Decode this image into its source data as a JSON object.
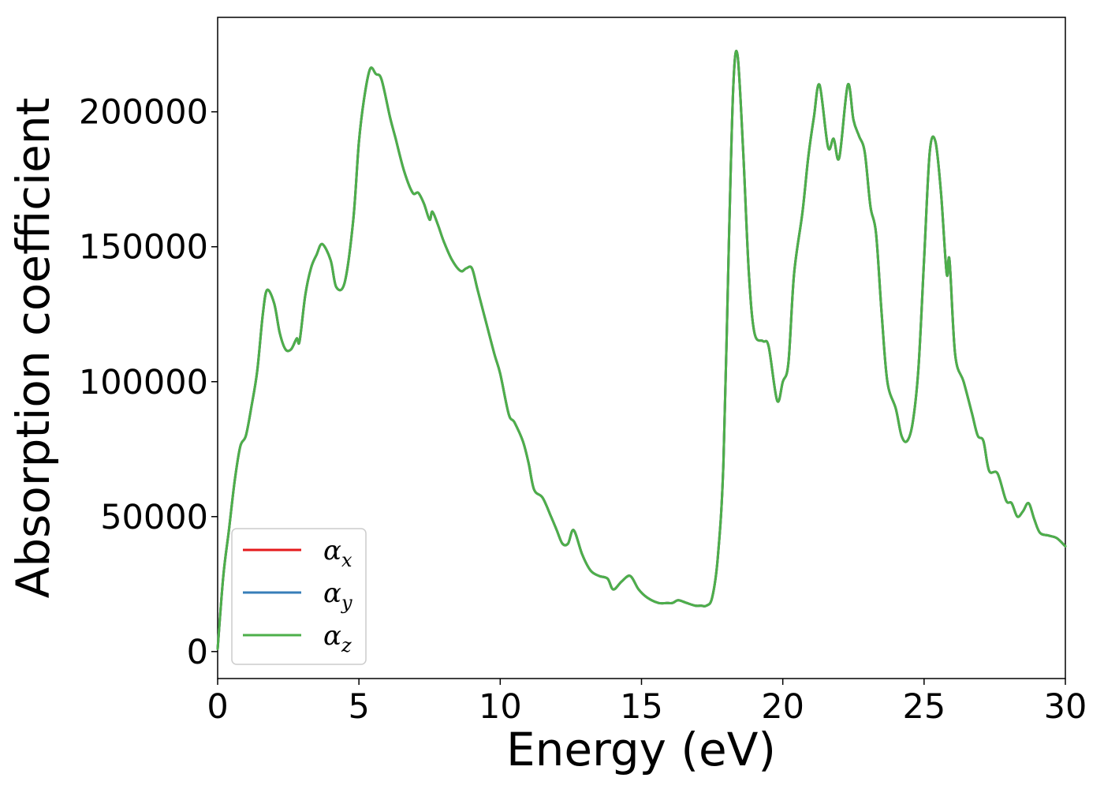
{
  "chart_data": {
    "type": "line",
    "xlabel": "Energy (eV)",
    "ylabel": "Absorption coefficient",
    "xlim": [
      0,
      30
    ],
    "ylim": [
      -10000,
      235000
    ],
    "xticks": [
      0,
      5,
      10,
      15,
      20,
      25,
      30
    ],
    "xtick_labels": [
      "0",
      "5",
      "10",
      "15",
      "20",
      "25",
      "30"
    ],
    "yticks": [
      0,
      50000,
      100000,
      150000,
      200000
    ],
    "ytick_labels": [
      "0",
      "50000",
      "100000",
      "150000",
      "200000"
    ],
    "grid": false,
    "legend_position": "bottom-left",
    "x": [
      0,
      0.2,
      0.4,
      0.6,
      0.8,
      1.0,
      1.2,
      1.4,
      1.6,
      1.75,
      2.0,
      2.2,
      2.4,
      2.6,
      2.8,
      2.9,
      3.1,
      3.3,
      3.5,
      3.7,
      4.0,
      4.2,
      4.5,
      4.8,
      5.0,
      5.2,
      5.4,
      5.6,
      5.8,
      6.1,
      6.3,
      6.6,
      6.9,
      7.1,
      7.3,
      7.5,
      7.6,
      7.8,
      8.0,
      8.3,
      8.6,
      8.8,
      9.0,
      9.2,
      9.5,
      9.8,
      10.0,
      10.3,
      10.5,
      10.8,
      11.0,
      11.2,
      11.5,
      11.8,
      12.0,
      12.2,
      12.4,
      12.6,
      12.9,
      13.2,
      13.5,
      13.8,
      14.0,
      14.3,
      14.6,
      14.9,
      15.2,
      15.6,
      15.9,
      16.1,
      16.3,
      16.6,
      16.9,
      17.1,
      17.3,
      17.5,
      17.7,
      17.9,
      18.1,
      18.25,
      18.4,
      18.6,
      18.8,
      19.0,
      19.3,
      19.5,
      19.8,
      20.0,
      20.2,
      20.4,
      20.7,
      20.9,
      21.1,
      21.3,
      21.6,
      21.8,
      22.0,
      22.3,
      22.5,
      22.7,
      22.9,
      23.1,
      23.3,
      23.5,
      23.7,
      24.0,
      24.2,
      24.4,
      24.6,
      24.8,
      25.0,
      25.2,
      25.4,
      25.6,
      25.8,
      25.9,
      26.1,
      26.4,
      26.7,
      26.9,
      27.1,
      27.3,
      27.6,
      27.9,
      28.1,
      28.3,
      28.5,
      28.7,
      28.9,
      29.1,
      29.4,
      29.7,
      30.0
    ],
    "series": [
      {
        "name": "αx",
        "color": "#e41a1c",
        "values": [
          1000,
          28000,
          45000,
          63000,
          76000,
          80000,
          91000,
          104000,
          125000,
          134000,
          129000,
          118000,
          112000,
          112000,
          116000,
          115000,
          132000,
          142000,
          147000,
          151000,
          145000,
          135000,
          137000,
          160000,
          189000,
          206000,
          216000,
          214000,
          212000,
          198000,
          190000,
          178000,
          170000,
          170000,
          166000,
          160000,
          163000,
          158000,
          152000,
          145000,
          141000,
          142000,
          142000,
          134000,
          122000,
          110000,
          103000,
          88000,
          85000,
          78000,
          70000,
          60000,
          57000,
          50000,
          45000,
          40000,
          40000,
          45000,
          36000,
          30000,
          28000,
          27000,
          23000,
          26000,
          28000,
          23000,
          20000,
          18000,
          18000,
          18000,
          19000,
          18000,
          17000,
          17000,
          17000,
          20000,
          35000,
          70000,
          155000,
          210000,
          221000,
          185000,
          140000,
          118000,
          115000,
          113000,
          93000,
          100000,
          107000,
          140000,
          163000,
          183000,
          198000,
          210000,
          187000,
          190000,
          183000,
          210000,
          197000,
          191000,
          185000,
          165000,
          155000,
          125000,
          100000,
          90000,
          80000,
          78000,
          85000,
          105000,
          145000,
          185000,
          189000,
          170000,
          140000,
          145000,
          110000,
          100000,
          88000,
          80000,
          78000,
          67000,
          66000,
          56000,
          55000,
          50000,
          52000,
          55000,
          49000,
          44000,
          43000,
          42000,
          39000
        ]
      },
      {
        "name": "αy",
        "color": "#377eb8",
        "values": [
          1000,
          28000,
          45000,
          63000,
          76000,
          80000,
          91000,
          104000,
          125000,
          134000,
          129000,
          118000,
          112000,
          112000,
          116000,
          115000,
          132000,
          142000,
          147000,
          151000,
          145000,
          135000,
          137000,
          160000,
          189000,
          206000,
          216000,
          214000,
          212000,
          198000,
          190000,
          178000,
          170000,
          170000,
          166000,
          160000,
          163000,
          158000,
          152000,
          145000,
          141000,
          142000,
          142000,
          134000,
          122000,
          110000,
          103000,
          88000,
          85000,
          78000,
          70000,
          60000,
          57000,
          50000,
          45000,
          40000,
          40000,
          45000,
          36000,
          30000,
          28000,
          27000,
          23000,
          26000,
          28000,
          23000,
          20000,
          18000,
          18000,
          18000,
          19000,
          18000,
          17000,
          17000,
          17000,
          20000,
          35000,
          70000,
          155000,
          210000,
          221000,
          185000,
          140000,
          118000,
          115000,
          113000,
          93000,
          100000,
          107000,
          140000,
          163000,
          183000,
          198000,
          210000,
          187000,
          190000,
          183000,
          210000,
          197000,
          191000,
          185000,
          165000,
          155000,
          125000,
          100000,
          90000,
          80000,
          78000,
          85000,
          105000,
          145000,
          185000,
          189000,
          170000,
          140000,
          145000,
          110000,
          100000,
          88000,
          80000,
          78000,
          67000,
          66000,
          56000,
          55000,
          50000,
          52000,
          55000,
          49000,
          44000,
          43000,
          42000,
          39000
        ]
      },
      {
        "name": "αz",
        "color": "#4daf4a",
        "values": [
          1000,
          28000,
          45000,
          63000,
          76000,
          80000,
          91000,
          104000,
          125000,
          134000,
          129000,
          118000,
          112000,
          112000,
          116000,
          115000,
          132000,
          142000,
          147000,
          151000,
          145000,
          135000,
          137000,
          160000,
          189000,
          206000,
          216000,
          214000,
          212000,
          198000,
          190000,
          178000,
          170000,
          170000,
          166000,
          160000,
          163000,
          158000,
          152000,
          145000,
          141000,
          142000,
          142000,
          134000,
          122000,
          110000,
          103000,
          88000,
          85000,
          78000,
          70000,
          60000,
          57000,
          50000,
          45000,
          40000,
          40000,
          45000,
          36000,
          30000,
          28000,
          27000,
          23000,
          26000,
          28000,
          23000,
          20000,
          18000,
          18000,
          18000,
          19000,
          18000,
          17000,
          17000,
          17000,
          20000,
          35000,
          70000,
          155000,
          210000,
          221000,
          185000,
          140000,
          118000,
          115000,
          113000,
          93000,
          100000,
          107000,
          140000,
          163000,
          183000,
          198000,
          210000,
          187000,
          190000,
          183000,
          210000,
          197000,
          191000,
          185000,
          165000,
          155000,
          125000,
          100000,
          90000,
          80000,
          78000,
          85000,
          105000,
          145000,
          185000,
          189000,
          170000,
          140000,
          145000,
          110000,
          100000,
          88000,
          80000,
          78000,
          67000,
          66000,
          56000,
          55000,
          50000,
          52000,
          55000,
          49000,
          44000,
          43000,
          42000,
          39000
        ]
      }
    ],
    "legend_entries": [
      {
        "base": "α",
        "sub": "x"
      },
      {
        "base": "α",
        "sub": "y"
      },
      {
        "base": "α",
        "sub": "z"
      }
    ]
  }
}
